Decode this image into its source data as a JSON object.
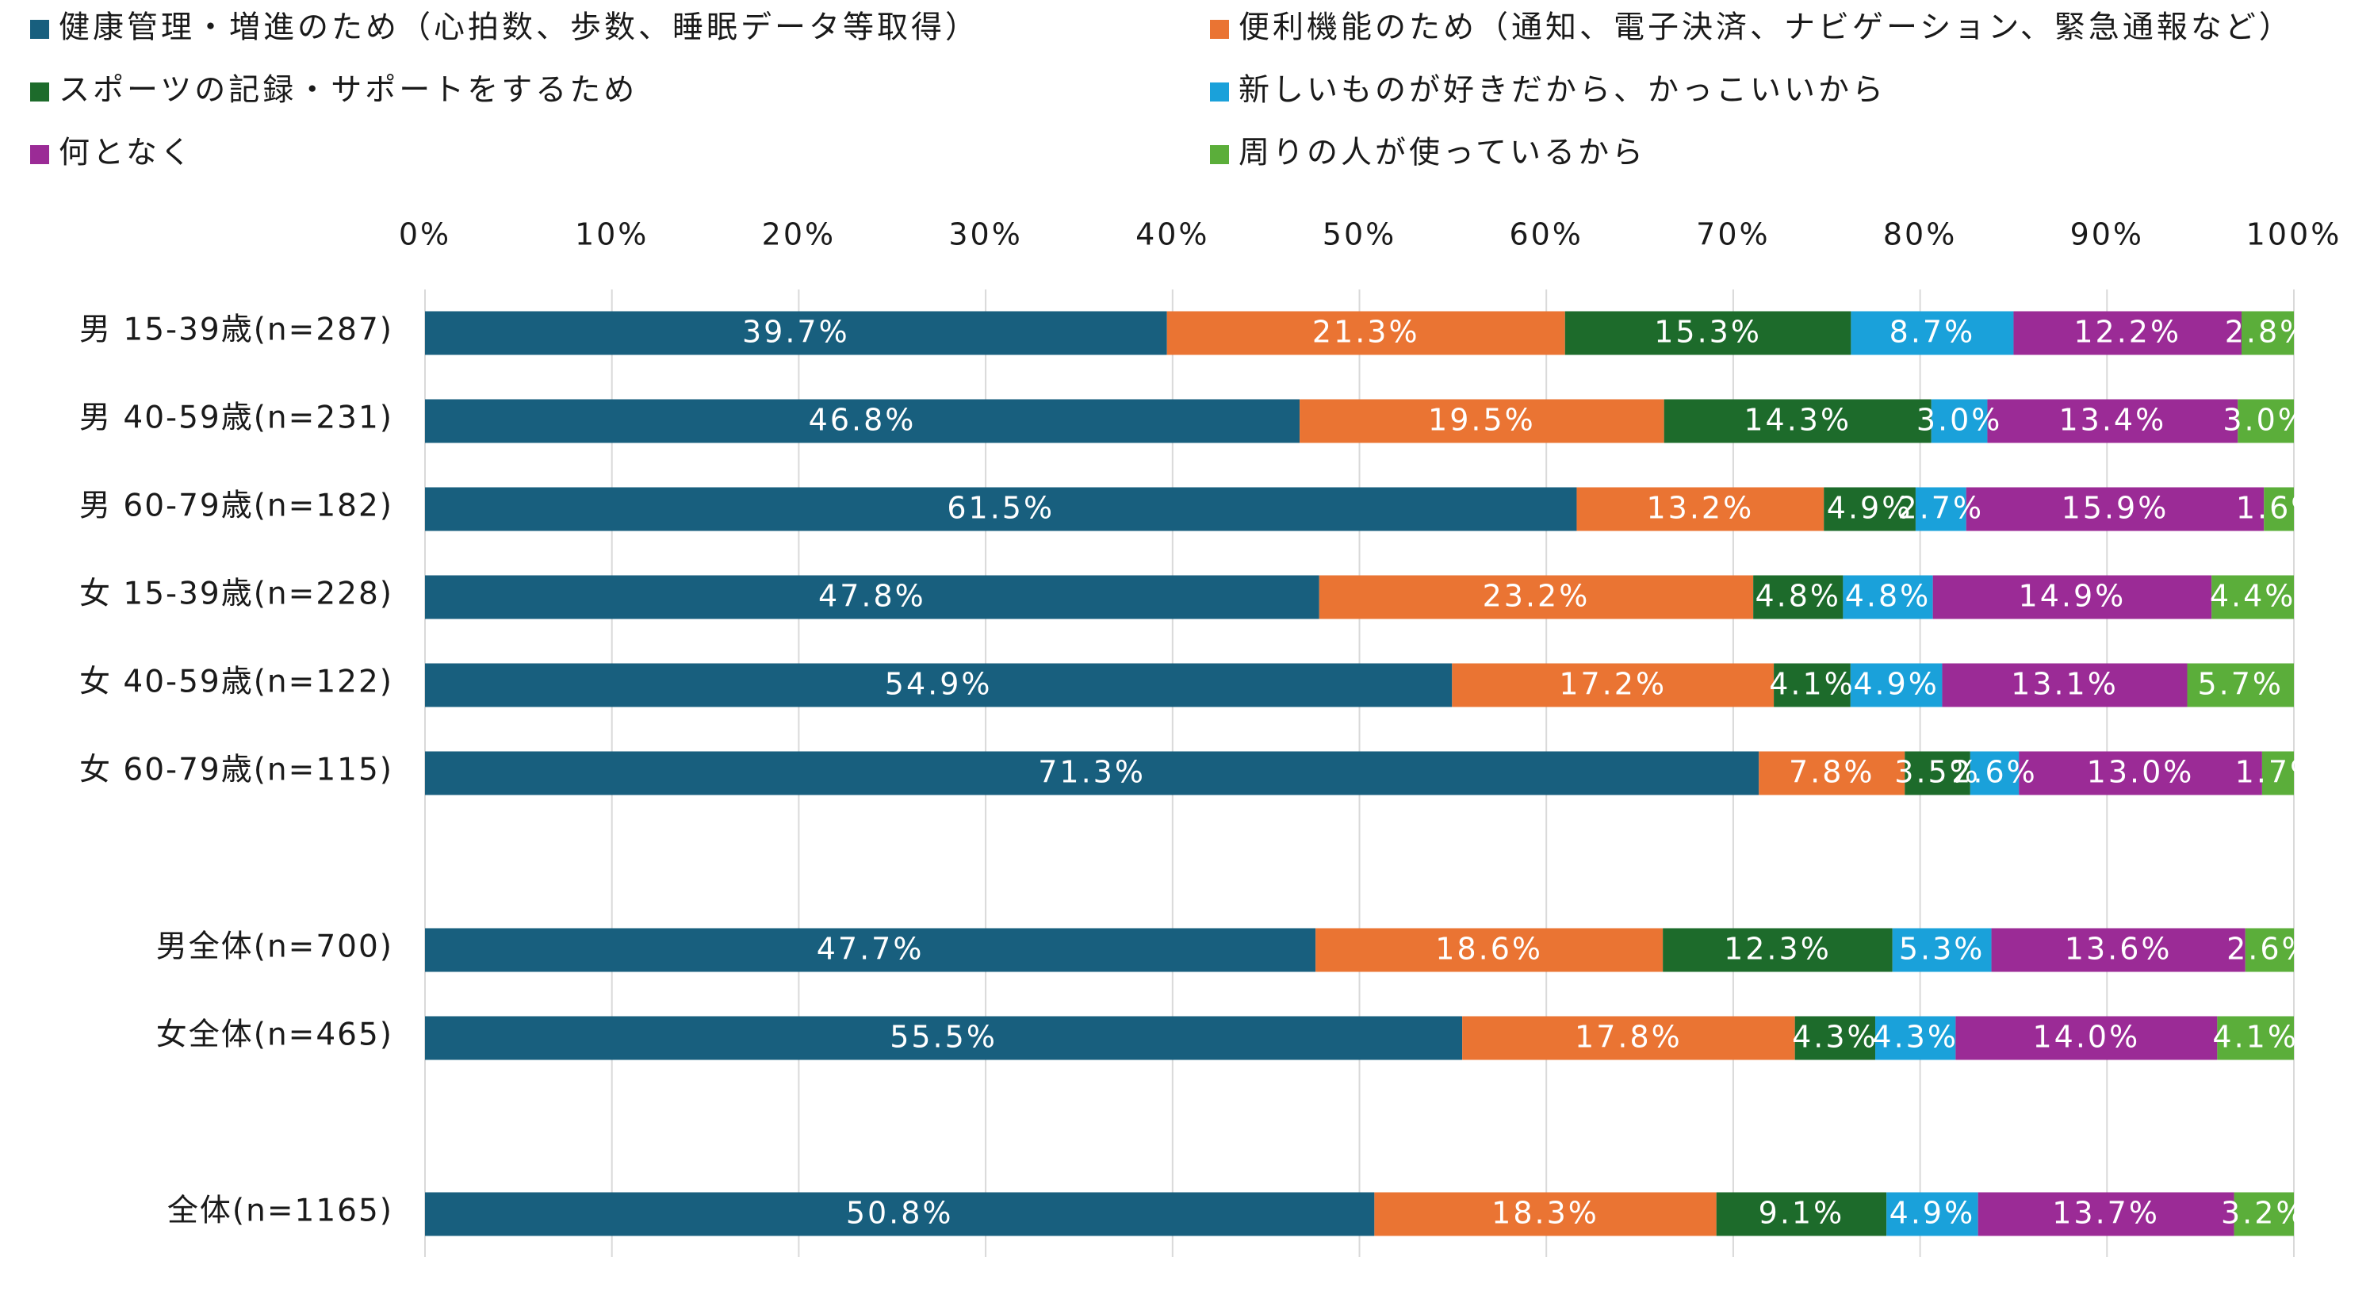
{
  "chart_data": {
    "type": "bar",
    "orientation": "horizontal",
    "stacked": "percent",
    "title": "",
    "xlabel": "",
    "ylabel": "",
    "xlim": [
      0,
      100
    ],
    "x_ticks": [
      "0%",
      "10%",
      "20%",
      "30%",
      "40%",
      "50%",
      "60%",
      "70%",
      "80%",
      "90%",
      "100%"
    ],
    "grid": "vertical",
    "legend_position": "top",
    "categories": [
      "男 15-39歳(n=287)",
      "男 40-59歳(n=231)",
      "男 60-79歳(n=182)",
      "女 15-39歳(n=228)",
      "女 40-59歳(n=122)",
      "女 60-79歳(n=115)",
      "男全体(n=700)",
      "女全体(n=465)",
      "全体(n=1165)"
    ],
    "series": [
      {
        "name": "健康管理・増進のため（心拍数、歩数、睡眠データ等取得）",
        "color": "#185F7E",
        "values": [
          39.7,
          46.8,
          61.5,
          47.8,
          54.9,
          71.3,
          47.7,
          55.5,
          50.8
        ],
        "labels": [
          "39.7%",
          "46.8%",
          "61.5%",
          "47.8%",
          "54.9%",
          "71.3%",
          "47.7%",
          "55.5%",
          "50.8%"
        ]
      },
      {
        "name": "便利機能のため（通知、電子決済、ナビゲーション、緊急通報など）",
        "color": "#EA7433",
        "values": [
          21.3,
          19.5,
          13.2,
          23.2,
          17.2,
          7.8,
          18.6,
          17.8,
          18.3
        ],
        "labels": [
          "21.3%",
          "19.5%",
          "13.2%",
          "23.2%",
          "17.2%",
          "7.8%",
          "18.6%",
          "17.8%",
          "18.3%"
        ]
      },
      {
        "name": "スポーツの記録・サポートをするため",
        "color": "#1D6B2B",
        "values": [
          15.3,
          14.3,
          4.9,
          4.8,
          4.1,
          3.5,
          12.3,
          4.3,
          9.1
        ],
        "labels": [
          "15.3%",
          "14.3%",
          "4.9%",
          "4.8%",
          "4.1%",
          "3.5%",
          "12.3%",
          "4.3%",
          "9.1%"
        ]
      },
      {
        "name": "新しいものが好きだから、かっこいいから",
        "color": "#1AA1DA",
        "values": [
          8.7,
          3.0,
          2.7,
          4.8,
          4.9,
          2.6,
          5.3,
          4.3,
          4.9
        ],
        "labels": [
          "8.7%",
          "3.0%",
          "2.7%",
          "4.8%",
          "4.9%",
          "2.6%",
          "5.3%",
          "4.3%",
          "4.9%"
        ]
      },
      {
        "name": "何となく",
        "color": "#9B2B96",
        "values": [
          12.2,
          13.4,
          15.9,
          14.9,
          13.1,
          13.0,
          13.6,
          14.0,
          13.7
        ],
        "labels": [
          "12.2%",
          "13.4%",
          "15.9%",
          "14.9%",
          "13.1%",
          "13.0%",
          "13.6%",
          "14.0%",
          "13.7%"
        ]
      },
      {
        "name": "周りの人が使っているから",
        "color": "#5BAE3A",
        "values": [
          2.8,
          3.0,
          1.6,
          4.4,
          5.7,
          1.7,
          2.6,
          4.1,
          3.2
        ],
        "labels": [
          "2.8%",
          "3.0%",
          "1.6%",
          "4.4%",
          "5.7%",
          "1.7%",
          "2.6%",
          "4.1%",
          "3.2%"
        ]
      }
    ]
  }
}
